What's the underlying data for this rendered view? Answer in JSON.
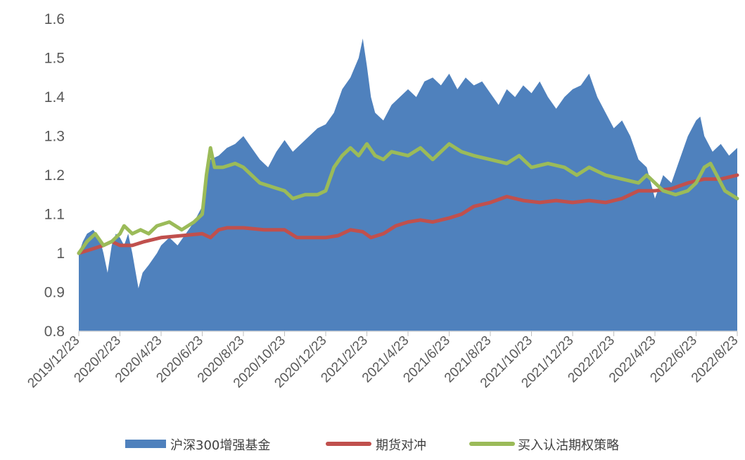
{
  "chart_data": {
    "type": "area",
    "title": "",
    "xlabel": "",
    "ylabel": "",
    "ylim": [
      0.8,
      1.6
    ],
    "yticks": [
      "0.8",
      "0.9",
      "1",
      "1.1",
      "1.2",
      "1.3",
      "1.4",
      "1.5",
      "1.6"
    ],
    "categories": [
      "2019/12/23",
      "2020/2/23",
      "2020/4/23",
      "2020/6/23",
      "2020/8/23",
      "2020/10/23",
      "2020/12/23",
      "2021/2/23",
      "2021/4/23",
      "2021/6/23",
      "2021/8/23",
      "2021/10/23",
      "2021/12/23",
      "2022/2/23",
      "2022/4/23",
      "2022/6/23",
      "2022/8/23"
    ],
    "grid": false,
    "legend_position": "bottom",
    "series": [
      {
        "name": "沪深300增强基金",
        "kind": "area",
        "color": "#4F81BD",
        "values": [
          [
            0,
            1.0
          ],
          [
            0.1,
            1.03
          ],
          [
            0.2,
            1.05
          ],
          [
            0.35,
            1.06
          ],
          [
            0.5,
            1.04
          ],
          [
            0.6,
            1.0
          ],
          [
            0.7,
            0.95
          ],
          [
            0.8,
            1.02
          ],
          [
            0.9,
            1.05
          ],
          [
            1.0,
            1.04
          ],
          [
            1.1,
            1.02
          ],
          [
            1.2,
            1.05
          ],
          [
            1.3,
            1.0
          ],
          [
            1.4,
            0.94
          ],
          [
            1.45,
            0.91
          ],
          [
            1.55,
            0.95
          ],
          [
            1.7,
            0.97
          ],
          [
            1.9,
            1.0
          ],
          [
            2.0,
            1.02
          ],
          [
            2.2,
            1.04
          ],
          [
            2.4,
            1.02
          ],
          [
            2.6,
            1.05
          ],
          [
            2.8,
            1.08
          ],
          [
            2.9,
            1.1
          ],
          [
            3.0,
            1.12
          ],
          [
            3.1,
            1.2
          ],
          [
            3.2,
            1.24
          ],
          [
            3.4,
            1.25
          ],
          [
            3.6,
            1.27
          ],
          [
            3.8,
            1.28
          ],
          [
            4.0,
            1.3
          ],
          [
            4.2,
            1.27
          ],
          [
            4.4,
            1.24
          ],
          [
            4.6,
            1.22
          ],
          [
            4.8,
            1.26
          ],
          [
            5.0,
            1.29
          ],
          [
            5.2,
            1.26
          ],
          [
            5.4,
            1.28
          ],
          [
            5.6,
            1.3
          ],
          [
            5.8,
            1.32
          ],
          [
            6.0,
            1.33
          ],
          [
            6.2,
            1.36
          ],
          [
            6.4,
            1.42
          ],
          [
            6.6,
            1.45
          ],
          [
            6.8,
            1.5
          ],
          [
            6.9,
            1.55
          ],
          [
            7.0,
            1.48
          ],
          [
            7.1,
            1.4
          ],
          [
            7.2,
            1.36
          ],
          [
            7.4,
            1.34
          ],
          [
            7.6,
            1.38
          ],
          [
            7.8,
            1.4
          ],
          [
            8.0,
            1.42
          ],
          [
            8.2,
            1.4
          ],
          [
            8.4,
            1.44
          ],
          [
            8.6,
            1.45
          ],
          [
            8.8,
            1.43
          ],
          [
            9.0,
            1.46
          ],
          [
            9.2,
            1.42
          ],
          [
            9.4,
            1.45
          ],
          [
            9.6,
            1.43
          ],
          [
            9.8,
            1.44
          ],
          [
            10.0,
            1.41
          ],
          [
            10.2,
            1.38
          ],
          [
            10.4,
            1.42
          ],
          [
            10.6,
            1.4
          ],
          [
            10.8,
            1.43
          ],
          [
            11.0,
            1.41
          ],
          [
            11.2,
            1.44
          ],
          [
            11.4,
            1.4
          ],
          [
            11.6,
            1.37
          ],
          [
            11.8,
            1.4
          ],
          [
            12.0,
            1.42
          ],
          [
            12.2,
            1.43
          ],
          [
            12.4,
            1.46
          ],
          [
            12.6,
            1.4
          ],
          [
            12.8,
            1.36
          ],
          [
            13.0,
            1.32
          ],
          [
            13.2,
            1.34
          ],
          [
            13.4,
            1.3
          ],
          [
            13.6,
            1.24
          ],
          [
            13.8,
            1.22
          ],
          [
            14.0,
            1.14
          ],
          [
            14.2,
            1.2
          ],
          [
            14.4,
            1.18
          ],
          [
            14.6,
            1.24
          ],
          [
            14.8,
            1.3
          ],
          [
            15.0,
            1.34
          ],
          [
            15.1,
            1.35
          ],
          [
            15.2,
            1.3
          ],
          [
            15.4,
            1.26
          ],
          [
            15.6,
            1.28
          ],
          [
            15.8,
            1.25
          ],
          [
            16.0,
            1.27
          ]
        ]
      },
      {
        "name": "期货对冲",
        "kind": "line",
        "color": "#C0504D",
        "values": [
          [
            0,
            1.0
          ],
          [
            0.3,
            1.01
          ],
          [
            0.6,
            1.02
          ],
          [
            0.8,
            1.03
          ],
          [
            1.0,
            1.02
          ],
          [
            1.3,
            1.02
          ],
          [
            1.6,
            1.03
          ],
          [
            2.0,
            1.04
          ],
          [
            2.5,
            1.045
          ],
          [
            3.0,
            1.05
          ],
          [
            3.2,
            1.04
          ],
          [
            3.4,
            1.06
          ],
          [
            3.6,
            1.065
          ],
          [
            4.0,
            1.065
          ],
          [
            4.5,
            1.06
          ],
          [
            5.0,
            1.06
          ],
          [
            5.3,
            1.04
          ],
          [
            5.6,
            1.04
          ],
          [
            6.0,
            1.04
          ],
          [
            6.3,
            1.045
          ],
          [
            6.6,
            1.06
          ],
          [
            6.9,
            1.055
          ],
          [
            7.1,
            1.04
          ],
          [
            7.4,
            1.05
          ],
          [
            7.7,
            1.07
          ],
          [
            8.0,
            1.08
          ],
          [
            8.3,
            1.085
          ],
          [
            8.6,
            1.08
          ],
          [
            9.0,
            1.09
          ],
          [
            9.3,
            1.1
          ],
          [
            9.6,
            1.12
          ],
          [
            10.0,
            1.13
          ],
          [
            10.4,
            1.145
          ],
          [
            10.8,
            1.135
          ],
          [
            11.2,
            1.13
          ],
          [
            11.6,
            1.135
          ],
          [
            12.0,
            1.13
          ],
          [
            12.4,
            1.135
          ],
          [
            12.8,
            1.13
          ],
          [
            13.2,
            1.14
          ],
          [
            13.6,
            1.16
          ],
          [
            14.0,
            1.16
          ],
          [
            14.4,
            1.165
          ],
          [
            14.8,
            1.18
          ],
          [
            15.2,
            1.19
          ],
          [
            15.6,
            1.19
          ],
          [
            16.0,
            1.2
          ]
        ]
      },
      {
        "name": "买入认沽期权策略",
        "kind": "line",
        "color": "#9BBB59",
        "values": [
          [
            0,
            1.0
          ],
          [
            0.2,
            1.03
          ],
          [
            0.4,
            1.05
          ],
          [
            0.6,
            1.02
          ],
          [
            0.8,
            1.03
          ],
          [
            1.0,
            1.05
          ],
          [
            1.1,
            1.07
          ],
          [
            1.3,
            1.05
          ],
          [
            1.5,
            1.06
          ],
          [
            1.7,
            1.05
          ],
          [
            1.9,
            1.07
          ],
          [
            2.2,
            1.08
          ],
          [
            2.5,
            1.06
          ],
          [
            2.8,
            1.08
          ],
          [
            3.0,
            1.1
          ],
          [
            3.1,
            1.2
          ],
          [
            3.2,
            1.27
          ],
          [
            3.3,
            1.22
          ],
          [
            3.5,
            1.22
          ],
          [
            3.8,
            1.23
          ],
          [
            4.0,
            1.22
          ],
          [
            4.2,
            1.2
          ],
          [
            4.4,
            1.18
          ],
          [
            4.7,
            1.17
          ],
          [
            5.0,
            1.16
          ],
          [
            5.2,
            1.14
          ],
          [
            5.5,
            1.15
          ],
          [
            5.8,
            1.15
          ],
          [
            6.0,
            1.16
          ],
          [
            6.2,
            1.22
          ],
          [
            6.4,
            1.25
          ],
          [
            6.6,
            1.27
          ],
          [
            6.8,
            1.25
          ],
          [
            7.0,
            1.28
          ],
          [
            7.2,
            1.25
          ],
          [
            7.4,
            1.24
          ],
          [
            7.6,
            1.26
          ],
          [
            8.0,
            1.25
          ],
          [
            8.3,
            1.27
          ],
          [
            8.6,
            1.24
          ],
          [
            9.0,
            1.28
          ],
          [
            9.3,
            1.26
          ],
          [
            9.6,
            1.25
          ],
          [
            10.0,
            1.24
          ],
          [
            10.4,
            1.23
          ],
          [
            10.7,
            1.25
          ],
          [
            11.0,
            1.22
          ],
          [
            11.4,
            1.23
          ],
          [
            11.8,
            1.22
          ],
          [
            12.1,
            1.2
          ],
          [
            12.4,
            1.22
          ],
          [
            12.8,
            1.2
          ],
          [
            13.2,
            1.19
          ],
          [
            13.6,
            1.18
          ],
          [
            13.8,
            1.2
          ],
          [
            14.0,
            1.18
          ],
          [
            14.2,
            1.16
          ],
          [
            14.5,
            1.15
          ],
          [
            14.8,
            1.16
          ],
          [
            15.0,
            1.18
          ],
          [
            15.2,
            1.22
          ],
          [
            15.35,
            1.23
          ],
          [
            15.5,
            1.2
          ],
          [
            15.7,
            1.16
          ],
          [
            16.0,
            1.14
          ]
        ]
      }
    ]
  }
}
